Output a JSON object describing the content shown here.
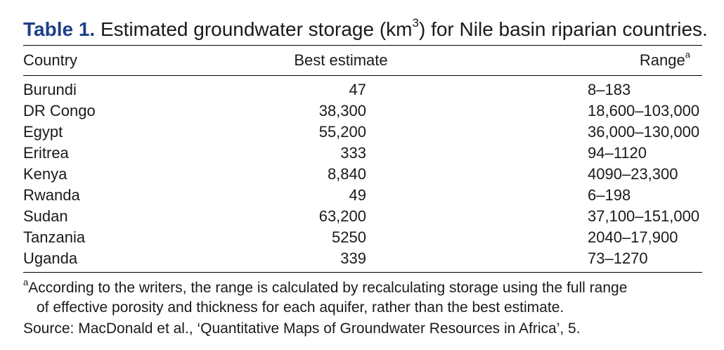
{
  "caption": {
    "label": "Table 1.",
    "text_before_sup": "Estimated groundwater storage (km",
    "sup": "3",
    "text_after_sup": ") for Nile basin riparian countries."
  },
  "header": {
    "country": "Country",
    "best_estimate": "Best estimate",
    "range": "Range",
    "range_sup": "a"
  },
  "rows": [
    {
      "country": "Burundi",
      "best": "47",
      "range": "8–183"
    },
    {
      "country": "DR Congo",
      "best": "38,300",
      "range": "18,600–103,000"
    },
    {
      "country": "Egypt",
      "best": "55,200",
      "range": "36,000–130,000"
    },
    {
      "country": "Eritrea",
      "best": "333",
      "range": "94–1120"
    },
    {
      "country": "Kenya",
      "best": "8,840",
      "range": "4090–23,300"
    },
    {
      "country": "Rwanda",
      "best": "49",
      "range": "6–198"
    },
    {
      "country": "Sudan",
      "best": "63,200",
      "range": "37,100–151,000"
    },
    {
      "country": "Tanzania",
      "best": "5250",
      "range": "2040–17,900"
    },
    {
      "country": "Uganda",
      "best": "339",
      "range": "73–1270"
    }
  ],
  "footnote": {
    "sup": "a",
    "line1": "According to the writers, the range is calculated by recalculating storage using the full range",
    "line2": "of effective porosity and thickness for each aquifer, rather than the best estimate.",
    "source": "Source: MacDonald et al., ‘Quantitative Maps of Groundwater Resources in Africa’, 5."
  },
  "colors": {
    "caption_label": "#1f3f8a",
    "text": "#1a1a1a",
    "rules": "#000000"
  }
}
